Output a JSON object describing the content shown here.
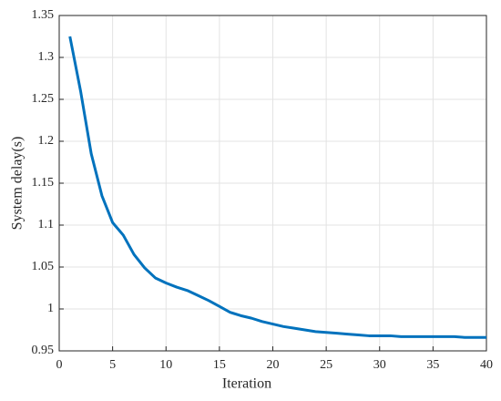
{
  "chart_data": {
    "type": "line",
    "xlabel": "Iteration",
    "ylabel": "System delay(s)",
    "x": [
      1,
      2,
      3,
      4,
      5,
      6,
      7,
      8,
      9,
      10,
      11,
      12,
      13,
      14,
      15,
      16,
      17,
      18,
      19,
      20,
      21,
      22,
      23,
      24,
      25,
      26,
      27,
      28,
      29,
      30,
      31,
      32,
      33,
      34,
      35,
      36,
      37,
      38,
      39,
      40
    ],
    "series": [
      {
        "color": "#0072bd",
        "values": [
          1.325,
          1.26,
          1.185,
          1.135,
          1.103,
          1.088,
          1.065,
          1.049,
          1.037,
          1.031,
          1.026,
          1.022,
          1.016,
          1.01,
          1.003,
          0.996,
          0.992,
          0.989,
          0.985,
          0.982,
          0.979,
          0.977,
          0.975,
          0.973,
          0.972,
          0.971,
          0.97,
          0.969,
          0.968,
          0.968,
          0.968,
          0.967,
          0.967,
          0.967,
          0.967,
          0.967,
          0.967,
          0.966,
          0.966,
          0.966
        ]
      }
    ],
    "xlim": [
      0,
      40
    ],
    "xticks": [
      0,
      5,
      10,
      15,
      20,
      25,
      30,
      35,
      40
    ],
    "ylim": [
      0.95,
      1.35
    ],
    "yticks": [
      0.95,
      1,
      1.05,
      1.1,
      1.15,
      1.2,
      1.25,
      1.3,
      1.35
    ],
    "grid": true
  }
}
